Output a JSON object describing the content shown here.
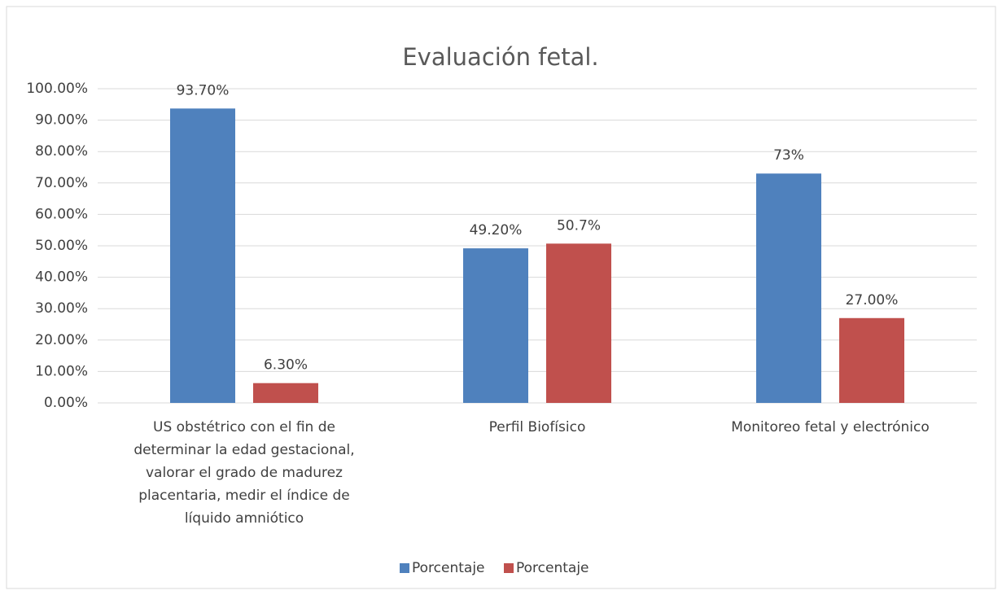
{
  "chart_data": {
    "type": "bar",
    "title": "Evaluación fetal.",
    "categories": [
      "US obstétrico con el fin de determinar la edad gestacional, valorar el grado de madurez placentaria, medir el índice de líquido amniótico",
      "Perfil Biofísico",
      "Monitoreo fetal y electrónico"
    ],
    "series": [
      {
        "name": "Porcentaje",
        "color": "#4f81bd",
        "values": [
          93.7,
          49.2,
          73
        ],
        "value_labels": [
          "93.70%",
          "49.20%",
          "73%"
        ]
      },
      {
        "name": "Porcentaje",
        "color": "#c0504d",
        "values": [
          6.3,
          50.7,
          27
        ],
        "value_labels": [
          "6.30%",
          "50.7%",
          "27.00%"
        ]
      }
    ],
    "ylim": [
      0,
      100
    ],
    "yticks": [
      {
        "value": 0,
        "label": "0.00%"
      },
      {
        "value": 10,
        "label": "10.00%"
      },
      {
        "value": 20,
        "label": "20.00%"
      },
      {
        "value": 30,
        "label": "30.00%"
      },
      {
        "value": 40,
        "label": "40.00%"
      },
      {
        "value": 50,
        "label": "50.00%"
      },
      {
        "value": 60,
        "label": "60.00%"
      },
      {
        "value": 70,
        "label": "70.00%"
      },
      {
        "value": 80,
        "label": "80.00%"
      },
      {
        "value": 90,
        "label": "90.00%"
      },
      {
        "value": 100,
        "label": "100.00%"
      }
    ],
    "grid": true,
    "legend": "bottom"
  }
}
